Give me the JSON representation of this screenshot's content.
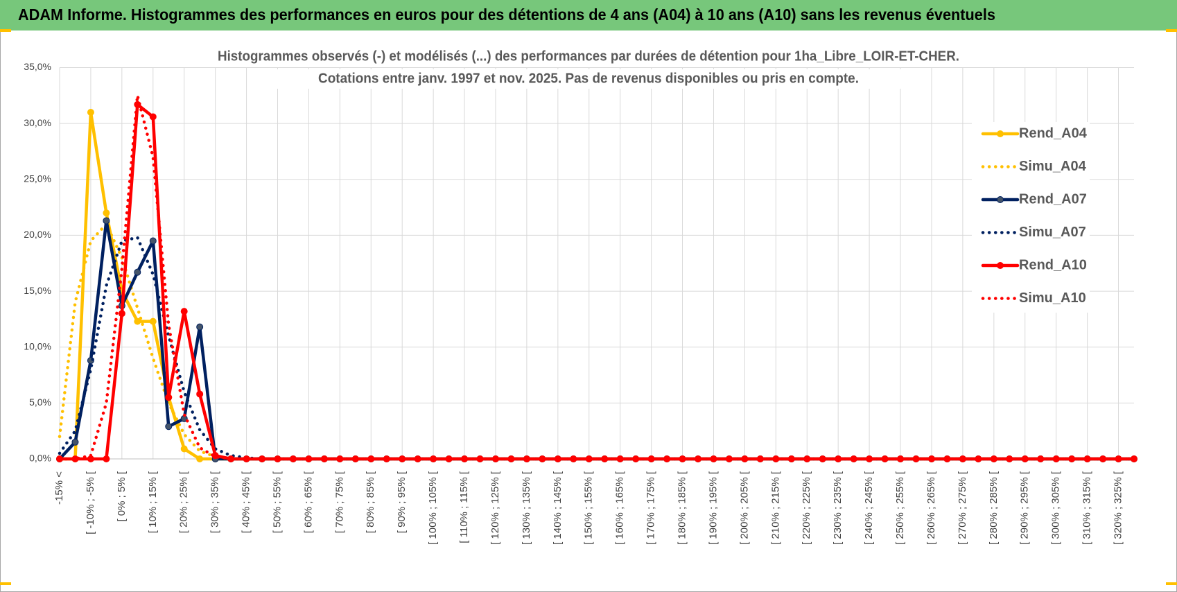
{
  "chart_data": {
    "type": "line",
    "header": "ADAM Informe. Histogrammes des performances en euros pour des détentions de 4 ans (A04) à 10 ans (A10) sans les revenus éventuels",
    "title": [
      "Histogrammes observés (-) et modélisés (...) des performances par durées de détention pour 1ha_Libre_LOIR-ET-CHER.",
      "Cotations entre janv. 1997 et nov. 2025. Pas de revenus disponibles ou pris en compte."
    ],
    "categories": [
      "-15% <",
      null,
      "[ -10% ; -5% [",
      null,
      "[ 0% ; 5% [",
      null,
      "[ 10% ; 15% [",
      null,
      "[ 20% ; 25% [",
      null,
      "[ 30% ; 35% [",
      null,
      "[ 40% ; 45% [",
      null,
      "[ 50% ; 55% [",
      null,
      "[ 60% ; 65% [",
      null,
      "[ 70% ; 75% [",
      null,
      "[ 80% ; 85% [",
      null,
      "[ 90% ; 95% [",
      null,
      "[ 100% ; 105% [",
      null,
      "[ 110% ; 115% [",
      null,
      "[ 120% ; 125% [",
      null,
      "[ 130% ; 135% [",
      null,
      "[ 140% ; 145% [",
      null,
      "[ 150% ; 155% [",
      null,
      "[ 160% ; 165% [",
      null,
      "[ 170% ; 175% [",
      null,
      "[ 180% ; 185% [",
      null,
      "[ 190% ; 195% [",
      null,
      "[ 200% ; 205% [",
      null,
      "[ 210% ; 215% [",
      null,
      "[ 220% ; 225% [",
      null,
      "[ 230% ; 235% [",
      null,
      "[ 240% ; 245% [",
      null,
      "[ 250% ; 255% [",
      null,
      "[ 260% ; 265% [",
      null,
      "[ 270% ; 275% [",
      null,
      "[ 280% ; 285% [",
      null,
      "[ 290% ; 295% [",
      null,
      "[ 300% ; 305% [",
      null,
      "[ 310% ; 315% [",
      null,
      "[ 320% ; 325% [",
      null
    ],
    "series": [
      {
        "name": "Rend_A04",
        "color": "#ffc000",
        "line_style": "solid",
        "markers": true,
        "values": [
          0,
          0,
          31,
          22,
          15,
          12.3,
          12.3,
          5.5,
          0.9,
          0,
          0,
          0,
          0,
          0,
          0,
          0,
          0,
          0,
          0,
          0,
          0,
          0,
          0,
          0,
          0,
          0,
          0,
          0,
          0,
          0,
          0,
          0,
          0,
          0,
          0,
          0,
          0,
          0,
          0,
          0,
          0,
          0,
          0,
          0,
          0,
          0,
          0,
          0,
          0,
          0,
          0,
          0,
          0,
          0,
          0,
          0,
          0,
          0,
          0,
          0,
          0,
          0,
          0,
          0,
          0,
          0,
          0,
          0,
          0,
          0
        ]
      },
      {
        "name": "Simu_A04",
        "color": "#ffc000",
        "line_style": "dotted",
        "markers": false,
        "values": [
          2,
          14,
          19.5,
          21,
          18,
          13.5,
          9,
          5,
          2.2,
          0.7,
          0.2,
          0,
          0,
          0,
          0,
          0,
          0,
          0,
          0,
          0,
          0,
          0,
          0,
          0,
          0,
          0,
          0,
          0,
          0,
          0,
          0,
          0,
          0,
          0,
          0,
          0,
          0,
          0,
          0,
          0,
          0,
          0,
          0,
          0,
          0,
          0,
          0,
          0,
          0,
          0,
          0,
          0,
          0,
          0,
          0,
          0,
          0,
          0,
          0,
          0,
          0,
          0,
          0,
          0,
          0,
          0,
          0,
          0,
          0,
          0
        ]
      },
      {
        "name": "Rend_A07",
        "color": "#002060",
        "line_style": "solid",
        "markers": true,
        "values": [
          0,
          1.5,
          8.8,
          21.3,
          13.7,
          16.7,
          19.5,
          2.9,
          3.6,
          11.8,
          0,
          0,
          0,
          0,
          0,
          0,
          0,
          0,
          0,
          0,
          0,
          0,
          0,
          0,
          0,
          0,
          0,
          0,
          0,
          0,
          0,
          0,
          0,
          0,
          0,
          0,
          0,
          0,
          0,
          0,
          0,
          0,
          0,
          0,
          0,
          0,
          0,
          0,
          0,
          0,
          0,
          0,
          0,
          0,
          0,
          0,
          0,
          0,
          0,
          0,
          0,
          0,
          0,
          0,
          0,
          0,
          0,
          0,
          0,
          0
        ]
      },
      {
        "name": "Simu_A07",
        "color": "#002060",
        "line_style": "dotted",
        "markers": false,
        "values": [
          0.5,
          2.5,
          8,
          15.5,
          19.5,
          19.8,
          16.5,
          11,
          6,
          2.6,
          0.9,
          0.3,
          0.1,
          0,
          0,
          0,
          0,
          0,
          0,
          0,
          0,
          0,
          0,
          0,
          0,
          0,
          0,
          0,
          0,
          0,
          0,
          0,
          0,
          0,
          0,
          0,
          0,
          0,
          0,
          0,
          0,
          0,
          0,
          0,
          0,
          0,
          0,
          0,
          0,
          0,
          0,
          0,
          0,
          0,
          0,
          0,
          0,
          0,
          0,
          0,
          0,
          0,
          0,
          0,
          0,
          0,
          0,
          0,
          0,
          0
        ]
      },
      {
        "name": "Rend_A10",
        "color": "#ff0000",
        "line_style": "solid",
        "markers": true,
        "values": [
          0,
          0,
          0,
          0,
          13,
          31.7,
          30.6,
          5.5,
          13.2,
          5.8,
          0.3,
          0,
          0,
          0,
          0,
          0,
          0,
          0,
          0,
          0,
          0,
          0,
          0,
          0,
          0,
          0,
          0,
          0,
          0,
          0,
          0,
          0,
          0,
          0,
          0,
          0,
          0,
          0,
          0,
          0,
          0,
          0,
          0,
          0,
          0,
          0,
          0,
          0,
          0,
          0,
          0,
          0,
          0,
          0,
          0,
          0,
          0,
          0,
          0,
          0,
          0,
          0,
          0,
          0,
          0,
          0,
          0,
          0,
          0,
          0
        ]
      },
      {
        "name": "Simu_A10",
        "color": "#ff0000",
        "line_style": "dotted",
        "markers": false,
        "values": [
          0,
          0,
          0.3,
          5,
          17,
          32.5,
          27,
          12,
          4,
          1,
          0.2,
          0,
          0,
          0,
          0,
          0,
          0,
          0,
          0,
          0,
          0,
          0,
          0,
          0,
          0,
          0,
          0,
          0,
          0,
          0,
          0,
          0,
          0,
          0,
          0,
          0,
          0,
          0,
          0,
          0,
          0,
          0,
          0,
          0,
          0,
          0,
          0,
          0,
          0,
          0,
          0,
          0,
          0,
          0,
          0,
          0,
          0,
          0,
          0,
          0,
          0,
          0,
          0,
          0,
          0,
          0,
          0,
          0,
          0,
          0
        ]
      }
    ],
    "ylim": [
      0,
      35
    ],
    "yticks": [
      {
        "value": 0,
        "label": "0,0%"
      },
      {
        "value": 5,
        "label": "5,0%"
      },
      {
        "value": 10,
        "label": "10,0%"
      },
      {
        "value": 15,
        "label": "15,0%"
      },
      {
        "value": 20,
        "label": "20,0%"
      },
      {
        "value": 25,
        "label": "25,0%"
      },
      {
        "value": 30,
        "label": "30,0%"
      },
      {
        "value": 35,
        "label": "35,0%"
      }
    ],
    "grid": true,
    "legend": "right"
  }
}
